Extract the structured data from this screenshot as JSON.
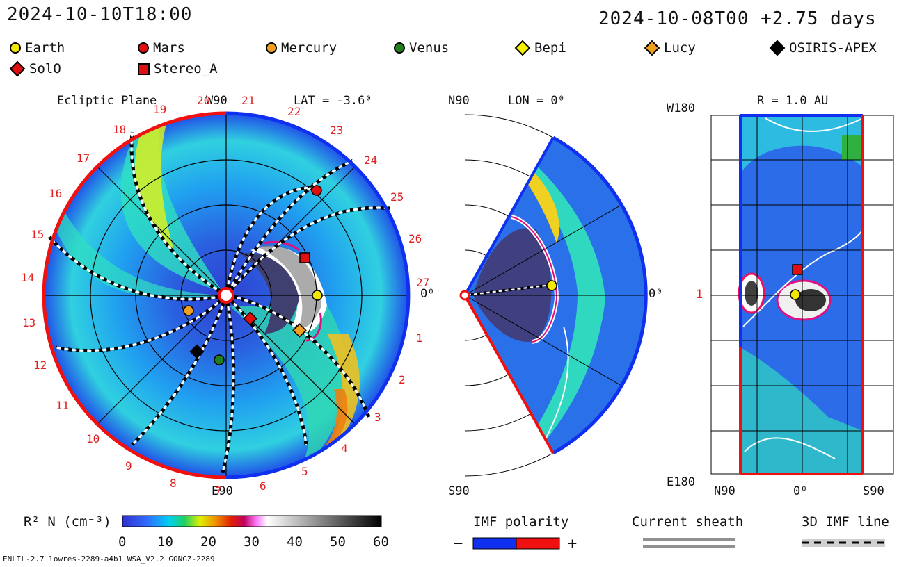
{
  "header": {
    "left_timestamp": "2024-10-10T18:00",
    "right_timestamp": "2024-10-08T00 +2.75 days"
  },
  "legend": {
    "row1": [
      {
        "label": "Earth",
        "shape": "circle",
        "color": "#f5e800"
      },
      {
        "label": "Mars",
        "shape": "circle",
        "color": "#e01010"
      },
      {
        "label": "Mercury",
        "shape": "circle",
        "color": "#f0a020"
      },
      {
        "label": "Venus",
        "shape": "circle",
        "color": "#208020"
      },
      {
        "label": "Bepi",
        "shape": "diamond",
        "color": "#f5f000"
      },
      {
        "label": "Lucy",
        "shape": "diamond",
        "color": "#f0a020"
      },
      {
        "label": "OSIRIS-APEX",
        "shape": "diamond",
        "color": "#000000"
      }
    ],
    "row2": [
      {
        "label": "SolO",
        "shape": "diamond",
        "color": "#e01010"
      },
      {
        "label": "Stereo_A",
        "shape": "square",
        "color": "#e01010"
      }
    ]
  },
  "ecliptic": {
    "title": "Ecliptic Plane",
    "top_label": "W90",
    "lat_label": "LAT = -3.6⁰",
    "bottom_label": "E90",
    "right_label": "0⁰",
    "carrington_ticks": [
      "1",
      "2",
      "3",
      "4",
      "5",
      "6",
      "7",
      "8",
      "9",
      "10",
      "11",
      "12",
      "13",
      "14",
      "15",
      "16",
      "17",
      "18",
      "19",
      "20",
      "21",
      "22",
      "23",
      "24",
      "25",
      "26",
      "27"
    ]
  },
  "meridional": {
    "top_left": "N90",
    "lon_label": "LON = 0⁰",
    "right_label": "0⁰",
    "bottom_left": "S90"
  },
  "radial": {
    "title": "R = 1.0 AU",
    "top_left": "W180",
    "bottom_left": "E180",
    "mid_left": "1",
    "x_left": "N90",
    "x_mid": "0⁰",
    "x_right": "S90"
  },
  "colorbar": {
    "label": "R² N (cm⁻³)",
    "ticks": [
      "0",
      "10",
      "20",
      "30",
      "40",
      "50",
      "60"
    ]
  },
  "imf": {
    "label": "IMF polarity",
    "minus": "−",
    "plus": "+"
  },
  "current_sheath": {
    "label": "Current sheath"
  },
  "imf_line": {
    "label": "3D IMF line"
  },
  "footer": "ENLIL-2.7 lowres-2289-a4b1 WSA_V2.2 GONGZ-2289",
  "colors": {
    "imf_negative": "#1030f0",
    "imf_positive": "#f01010",
    "accent_red": "#e02020"
  }
}
